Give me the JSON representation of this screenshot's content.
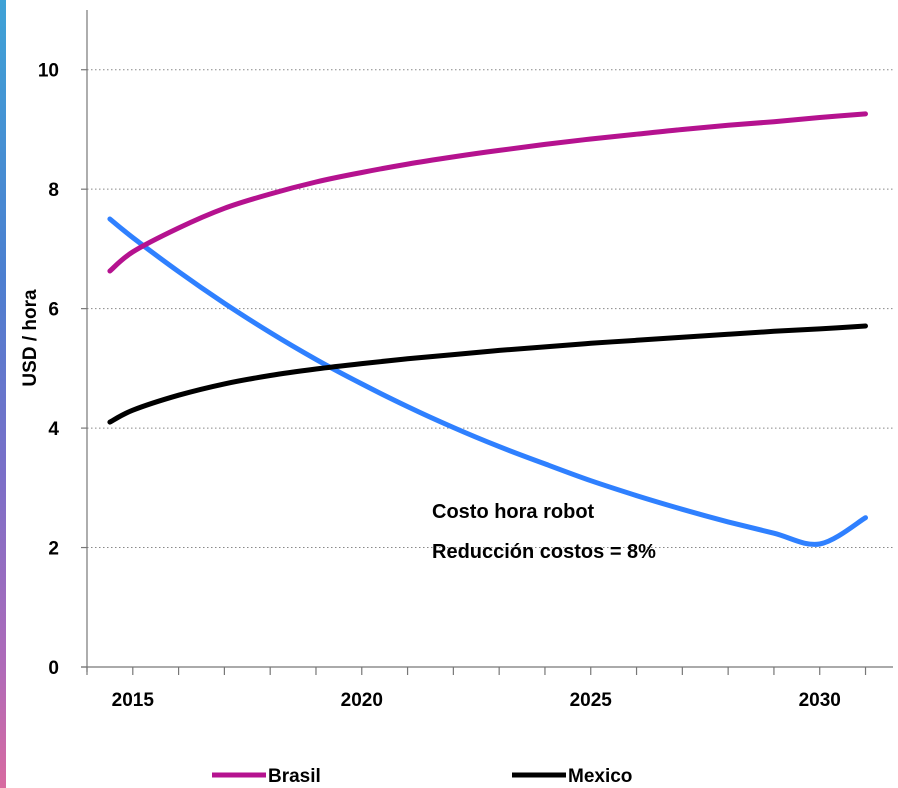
{
  "chart_data": {
    "type": "line",
    "title": "",
    "xlabel": "",
    "ylabel": "USD / hora",
    "xlim": [
      2014,
      2031.6
    ],
    "ylim": [
      0,
      11
    ],
    "x_ticks": [
      2015,
      2020,
      2025,
      2030
    ],
    "y_ticks": [
      0,
      2,
      4,
      6,
      8,
      10
    ],
    "grid": {
      "horizontal": true,
      "vertical": false
    },
    "legend_position": "bottom",
    "annotation": [
      "Costo hora robot",
      "Reducción costos = 8%"
    ],
    "series": [
      {
        "name": "",
        "color": "#2f80ff",
        "x": [
          2014.5,
          2015,
          2016,
          2017,
          2018,
          2019,
          2020,
          2021,
          2022,
          2023,
          2024,
          2025,
          2026,
          2027,
          2028,
          2029,
          2030,
          2031
        ],
        "y": [
          7.5,
          7.19,
          6.62,
          6.09,
          5.6,
          5.15,
          4.74,
          4.36,
          4.01,
          3.69,
          3.4,
          3.12,
          2.87,
          2.64,
          2.43,
          2.24,
          2.06,
          2.5
        ]
      },
      {
        "name": "Brasil",
        "color": "#b5128f",
        "x": [
          2014.5,
          2015,
          2016,
          2017,
          2018,
          2019,
          2020,
          2021,
          2022,
          2023,
          2024,
          2025,
          2026,
          2027,
          2028,
          2029,
          2030,
          2031
        ],
        "y": [
          6.63,
          6.95,
          7.35,
          7.68,
          7.92,
          8.12,
          8.28,
          8.42,
          8.54,
          8.65,
          8.75,
          8.84,
          8.92,
          9.0,
          9.07,
          9.13,
          9.2,
          9.26
        ]
      },
      {
        "name": "Mexico",
        "color": "#000000",
        "x": [
          2014.5,
          2015,
          2016,
          2017,
          2018,
          2019,
          2020,
          2021,
          2022,
          2023,
          2024,
          2025,
          2026,
          2027,
          2028,
          2029,
          2030,
          2031
        ],
        "y": [
          4.1,
          4.3,
          4.55,
          4.74,
          4.88,
          4.99,
          5.08,
          5.16,
          5.23,
          5.3,
          5.36,
          5.42,
          5.47,
          5.52,
          5.57,
          5.62,
          5.66,
          5.71
        ]
      }
    ]
  }
}
